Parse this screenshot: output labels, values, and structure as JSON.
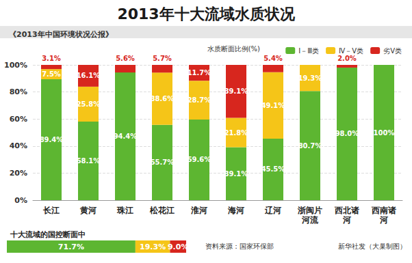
{
  "chart_data": [
    {
      "type": "bar",
      "title": "2013年十大流域水质状况",
      "subtitle": "《2013年中国环境状况公报》",
      "annotations": [
        "水质断面比例(%)"
      ],
      "categories": [
        "长江",
        "黄河",
        "珠江",
        "松花江",
        "淮河",
        "海河",
        "辽河",
        "浙闽片河流",
        "西北诸河",
        "西南诸河"
      ],
      "series": [
        {
          "name": "Ⅰ－Ⅲ类",
          "color": "#5db631",
          "values": [
            89.4,
            58.1,
            94.4,
            55.7,
            59.6,
            39.1,
            45.5,
            80.7,
            98.0,
            100
          ],
          "value_labels": [
            "89.4%",
            "58.1%",
            "94.4%",
            "55.7%",
            "59.6%",
            "39.1%",
            "45.5%",
            "80.7%",
            "98.0%",
            "100%"
          ]
        },
        {
          "name": "Ⅳ－Ⅴ类",
          "color": "#f5c518",
          "values": [
            7.5,
            25.8,
            null,
            38.6,
            28.7,
            21.8,
            49.1,
            19.3,
            null,
            null
          ],
          "value_labels": [
            "7.5%",
            "25.8%",
            null,
            "38.6%",
            "28.7%",
            "21.8%",
            "49.1%",
            "19.3%",
            null,
            null
          ]
        },
        {
          "name": "劣Ⅴ类",
          "color": "#d7261e",
          "values": [
            3.1,
            16.1,
            5.6,
            5.7,
            11.7,
            39.1,
            5.4,
            null,
            2.0,
            null
          ],
          "value_labels": [
            "3.1%",
            "16.1%",
            "5.6%",
            "5.7%",
            "11.7%",
            "39.1%",
            "5.4%",
            null,
            "2.0%",
            null
          ]
        }
      ],
      "stacked": true,
      "data_labels": true,
      "ylim": [
        0,
        100
      ],
      "yticks": [
        {
          "value": 0,
          "label": "0%"
        },
        {
          "value": 20,
          "label": "20%"
        },
        {
          "value": 40,
          "label": "40%"
        },
        {
          "value": 60,
          "label": "60%"
        },
        {
          "value": 80,
          "label": "80%"
        },
        {
          "value": 100,
          "label": "100%"
        }
      ],
      "grid": true,
      "legend": "top-right"
    },
    {
      "type": "bar",
      "orientation": "horizontal",
      "stacked": true,
      "data_labels": true,
      "title": "十大流域的国控断面中",
      "annotations": [
        "资料来源：国家环保部",
        "新华社发（大巢制图）"
      ],
      "categories": [
        null
      ],
      "series": [
        {
          "color": "#5db631",
          "values": [
            71.7
          ],
          "value_labels": [
            "71.7%"
          ]
        },
        {
          "color": "#f5c518",
          "values": [
            19.3
          ],
          "value_labels": [
            "19.3%"
          ]
        },
        {
          "color": "#d7261e",
          "values": [
            9.0
          ],
          "value_labels": [
            "9.0%"
          ]
        }
      ],
      "xlim": [
        0,
        100
      ],
      "tick_labels": false
    }
  ]
}
